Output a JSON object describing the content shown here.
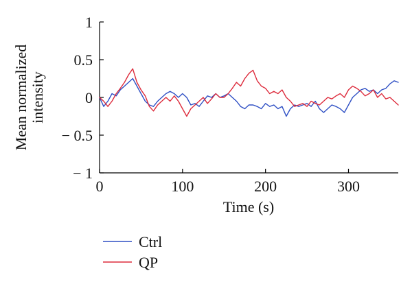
{
  "chart_data": {
    "type": "line",
    "xlabel": "Time (s)",
    "ylabel": "Mean normalized intensity",
    "ylabel_lines": [
      "Mean normalized",
      "intensity"
    ],
    "xlim": [
      0,
      360
    ],
    "ylim": [
      -1,
      1
    ],
    "xticks": [
      0,
      100,
      200,
      300
    ],
    "xtick_labels": [
      "0",
      "100",
      "200",
      "300"
    ],
    "yticks": [
      1,
      0.5,
      0,
      -0.5,
      -1
    ],
    "ytick_labels": [
      "1",
      "0.5",
      "0",
      "− 0.5",
      "− 1"
    ],
    "grid": false,
    "legend_position": "bottom-left",
    "series": [
      {
        "name": "Ctrl",
        "color": "#2e4fc4",
        "x": [
          0,
          5,
          10,
          15,
          20,
          25,
          30,
          35,
          40,
          45,
          50,
          55,
          60,
          65,
          70,
          75,
          80,
          85,
          90,
          95,
          100,
          105,
          110,
          115,
          120,
          125,
          130,
          135,
          140,
          145,
          150,
          155,
          160,
          165,
          170,
          175,
          180,
          185,
          190,
          195,
          200,
          205,
          210,
          215,
          220,
          225,
          230,
          235,
          240,
          245,
          250,
          255,
          260,
          265,
          270,
          275,
          280,
          285,
          290,
          295,
          300,
          305,
          310,
          315,
          320,
          325,
          330,
          335,
          340,
          345,
          350,
          355,
          360
        ],
        "y": [
          0.0,
          -0.12,
          -0.05,
          0.05,
          0.02,
          0.1,
          0.15,
          0.2,
          0.25,
          0.15,
          0.05,
          -0.05,
          -0.1,
          -0.12,
          -0.05,
          0.0,
          0.05,
          0.08,
          0.05,
          0.0,
          0.05,
          0.0,
          -0.1,
          -0.08,
          -0.12,
          -0.05,
          0.02,
          0.0,
          0.05,
          0.0,
          0.02,
          0.05,
          0.0,
          -0.05,
          -0.12,
          -0.15,
          -0.1,
          -0.1,
          -0.12,
          -0.15,
          -0.08,
          -0.12,
          -0.1,
          -0.15,
          -0.12,
          -0.25,
          -0.15,
          -0.1,
          -0.12,
          -0.1,
          -0.08,
          -0.12,
          -0.05,
          -0.15,
          -0.2,
          -0.15,
          -0.1,
          -0.12,
          -0.15,
          -0.2,
          -0.1,
          0.0,
          0.05,
          0.1,
          0.12,
          0.08,
          0.1,
          0.05,
          0.1,
          0.12,
          0.18,
          0.22,
          0.2
        ]
      },
      {
        "name": "QP",
        "color": "#dd2b3c",
        "x": [
          0,
          5,
          10,
          15,
          20,
          25,
          30,
          35,
          40,
          45,
          50,
          55,
          60,
          65,
          70,
          75,
          80,
          85,
          90,
          95,
          100,
          105,
          110,
          115,
          120,
          125,
          130,
          135,
          140,
          145,
          150,
          155,
          160,
          165,
          170,
          175,
          180,
          185,
          190,
          195,
          200,
          205,
          210,
          215,
          220,
          225,
          230,
          235,
          240,
          245,
          250,
          255,
          260,
          265,
          270,
          275,
          280,
          285,
          290,
          295,
          300,
          305,
          310,
          315,
          320,
          325,
          330,
          335,
          340,
          345,
          350,
          355,
          360
        ],
        "y": [
          0.0,
          -0.05,
          -0.12,
          -0.05,
          0.05,
          0.12,
          0.2,
          0.3,
          0.38,
          0.2,
          0.1,
          0.02,
          -0.12,
          -0.18,
          -0.1,
          -0.05,
          0.0,
          -0.05,
          0.02,
          -0.05,
          -0.15,
          -0.25,
          -0.15,
          -0.1,
          -0.05,
          0.0,
          -0.08,
          -0.02,
          0.05,
          0.0,
          0.0,
          0.05,
          0.12,
          0.2,
          0.15,
          0.25,
          0.32,
          0.36,
          0.22,
          0.15,
          0.12,
          0.05,
          0.08,
          0.05,
          0.1,
          0.0,
          -0.05,
          -0.12,
          -0.1,
          -0.08,
          -0.12,
          -0.05,
          -0.08,
          -0.1,
          -0.05,
          0.0,
          -0.02,
          0.02,
          0.05,
          0.0,
          0.1,
          0.15,
          0.12,
          0.08,
          0.02,
          0.05,
          0.1,
          0.0,
          0.05,
          -0.02,
          0.0,
          -0.05,
          -0.1
        ]
      }
    ]
  }
}
